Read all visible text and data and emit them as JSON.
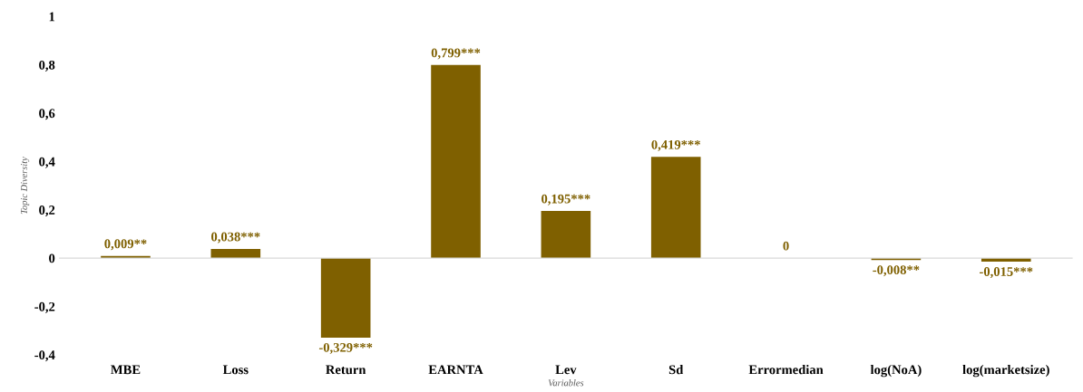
{
  "chart_data": {
    "type": "bar",
    "xlabel": "Variables",
    "ylabel": "Topic Diversity",
    "categories": [
      "MBE",
      "Loss",
      "Return",
      "EARNTA",
      "Lev",
      "Sd",
      "Errormedian",
      "log(NoA)",
      "log(marketsize)"
    ],
    "values": [
      0.009,
      0.038,
      -0.329,
      0.799,
      0.195,
      0.419,
      0,
      -0.008,
      -0.015
    ],
    "value_labels": [
      "0,009**",
      "0,038***",
      "-0,329***",
      "0,799***",
      "0,195***",
      "0,419***",
      "0",
      "-0,008**",
      "-0,015***"
    ],
    "color": "#7f6000",
    "ylim": [
      -0.4,
      1
    ],
    "yticks": [
      {
        "value": -0.4,
        "label": "-0,4"
      },
      {
        "value": -0.2,
        "label": "-0,2"
      },
      0,
      {
        "value": 0.2,
        "label": "0,2"
      },
      {
        "value": 0.4,
        "label": "0,4"
      },
      {
        "value": 0.6,
        "label": "0,6"
      },
      {
        "value": 0.8,
        "label": "0,8"
      },
      1
    ],
    "legend": false
  }
}
